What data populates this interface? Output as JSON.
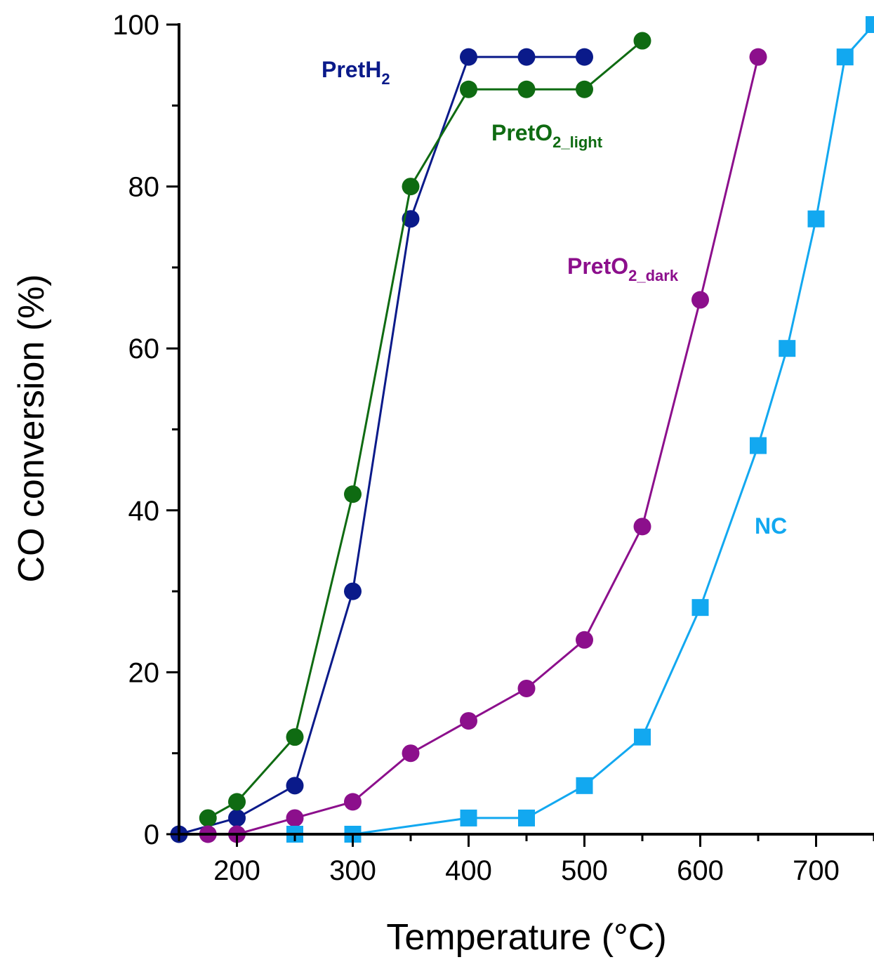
{
  "chart_data": {
    "type": "line",
    "xlabel": "Temperature (°C)",
    "ylabel": "CO conversion (%)",
    "xlim": [
      150,
      750
    ],
    "ylim": [
      0,
      100
    ],
    "x_ticks": [
      200,
      300,
      400,
      500,
      600,
      700
    ],
    "y_ticks": [
      0,
      20,
      40,
      60,
      80,
      100
    ],
    "grid": false,
    "series": [
      {
        "name": "PretH2",
        "label_main": "PretH",
        "label_sub": "2",
        "color": "#0a1a8a",
        "marker": "circle",
        "x": [
          150,
          200,
          250,
          300,
          350,
          400,
          450,
          500
        ],
        "y": [
          0,
          2,
          6,
          30,
          76,
          96,
          96,
          96
        ]
      },
      {
        "name": "PretO2_light",
        "label_main": "PretO",
        "label_sub": "2_light",
        "color": "#0f6b12",
        "marker": "circle",
        "x": [
          175,
          200,
          250,
          300,
          350,
          400,
          450,
          500,
          550
        ],
        "y": [
          2,
          4,
          12,
          42,
          80,
          92,
          92,
          92,
          98
        ]
      },
      {
        "name": "PretO2_dark",
        "label_main": "PretO",
        "label_sub": "2_dark",
        "color": "#8c0f8c",
        "marker": "circle",
        "x": [
          175,
          200,
          250,
          300,
          350,
          400,
          450,
          500,
          550,
          600,
          650
        ],
        "y": [
          0,
          0,
          2,
          4,
          10,
          14,
          18,
          24,
          38,
          66,
          96
        ]
      },
      {
        "name": "NC",
        "label_main": "NC",
        "label_sub": "",
        "color": "#12a8f0",
        "marker": "square",
        "x": [
          250,
          300,
          400,
          450,
          500,
          550,
          600,
          650,
          675,
          700,
          725,
          750
        ],
        "y": [
          0,
          0,
          2,
          2,
          6,
          12,
          28,
          48,
          60,
          76,
          96,
          100
        ]
      }
    ]
  }
}
